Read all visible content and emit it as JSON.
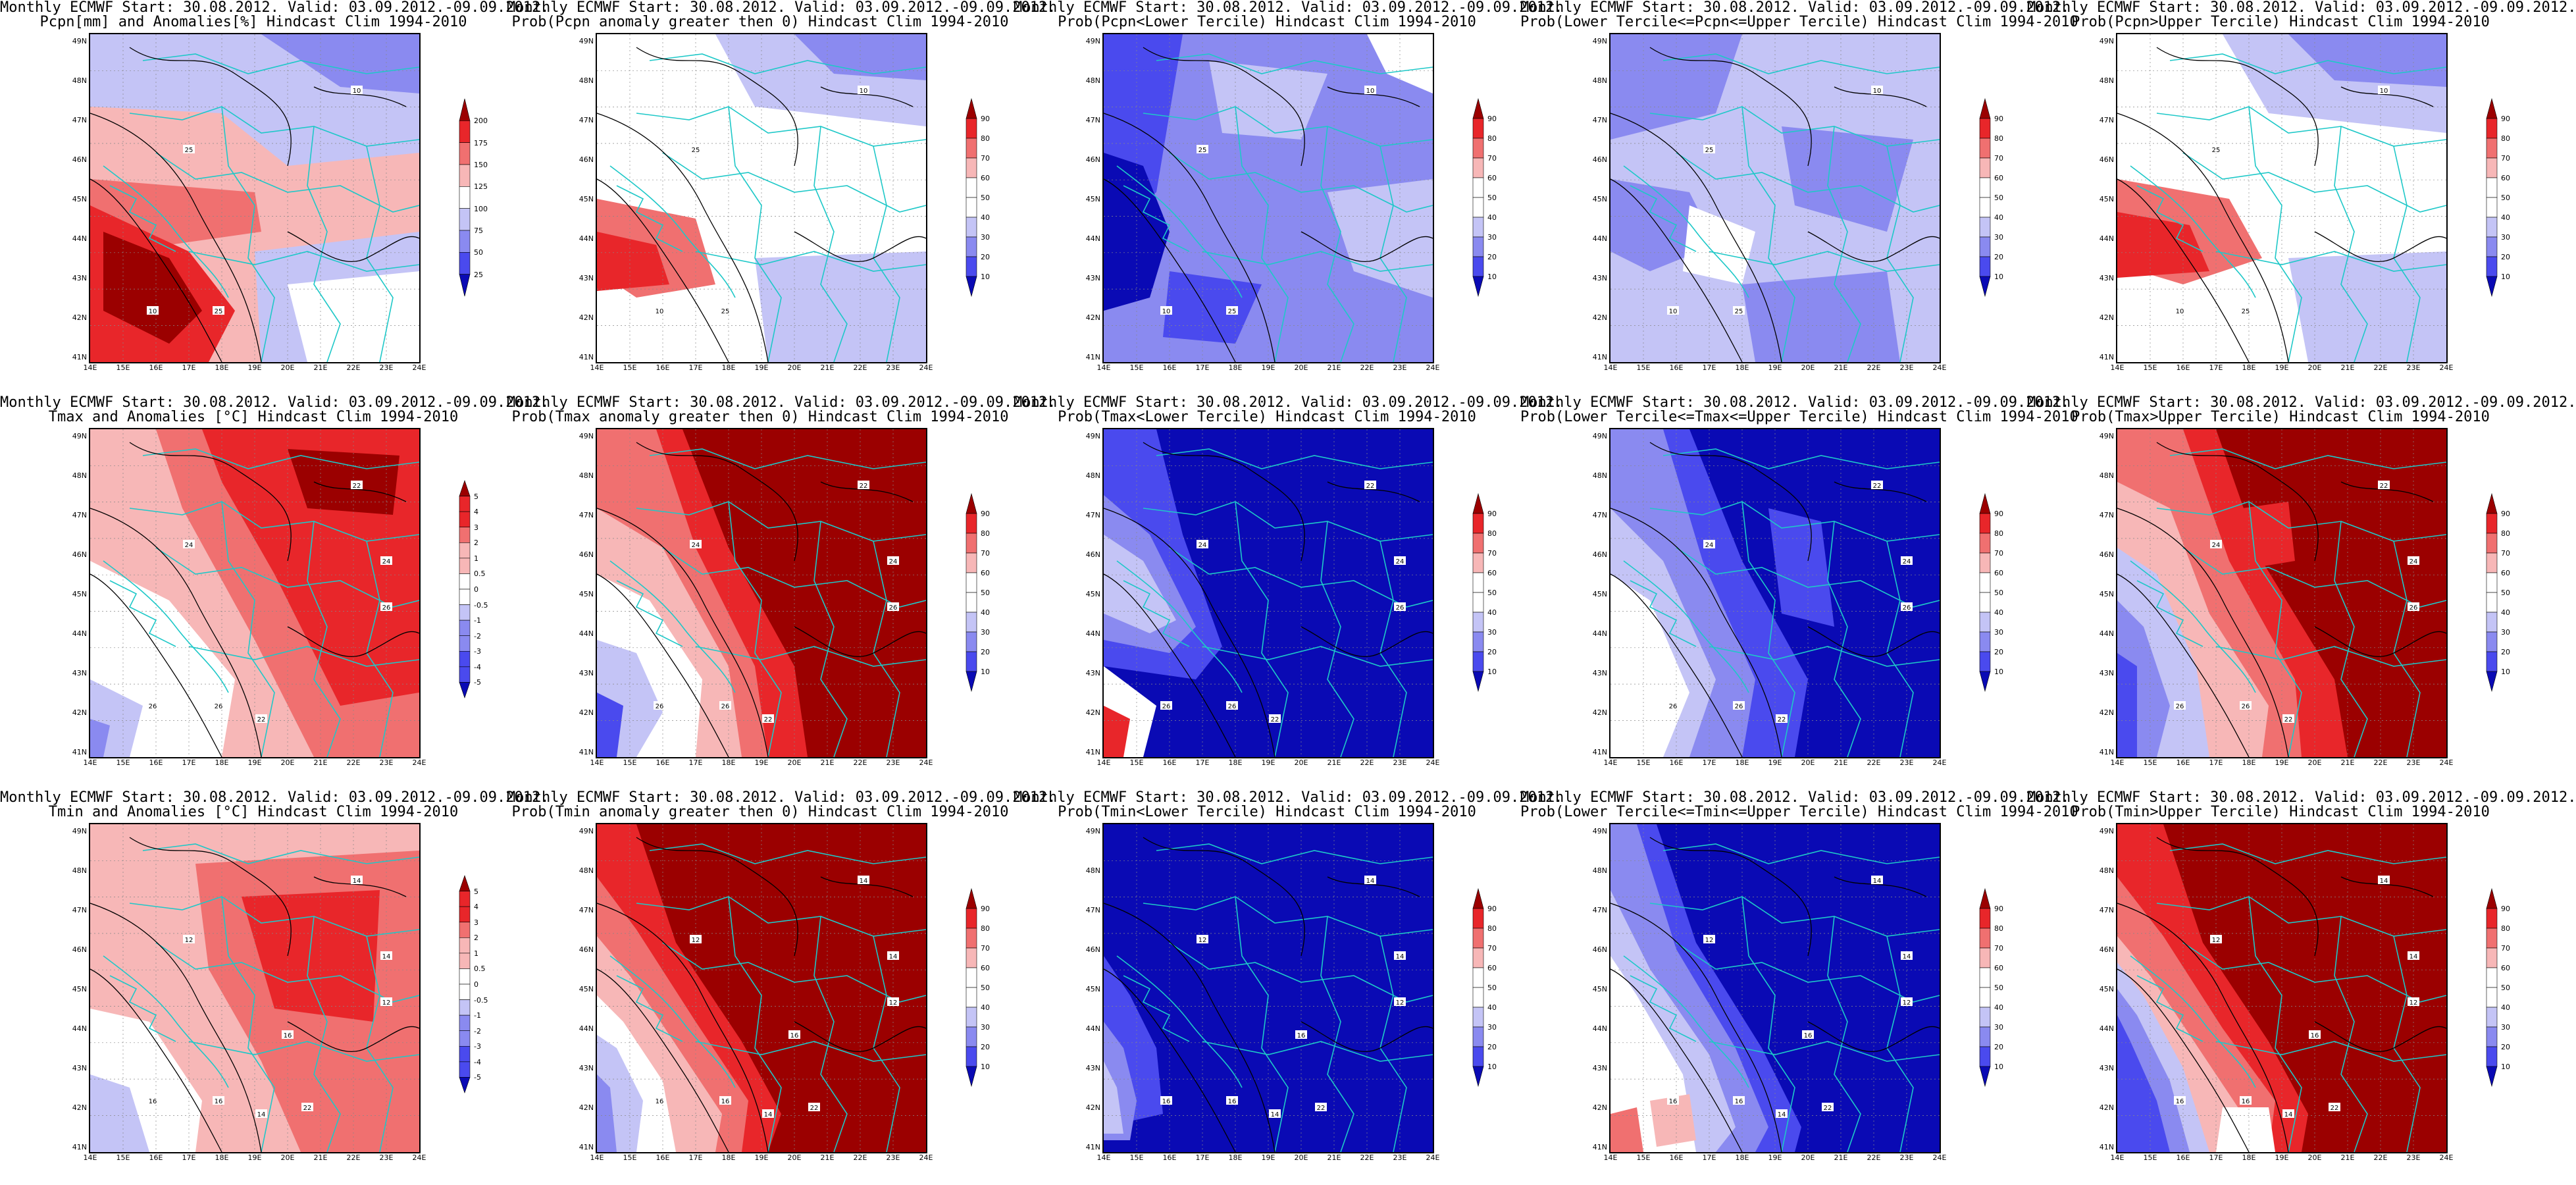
{
  "figure": {
    "panels": [
      {
        "title_line1": "Monthly ECMWF Start: 30.08.2012. Valid: 03.09.2012.-09.09.2012.",
        "title_line2": "Pcpn[mm] and Anomalies[%] Hindcast Clim 1994-2010",
        "scheme": "pcpn_anom",
        "colorbar": [
          "25",
          "50",
          "75",
          "100",
          "125",
          "150",
          "175",
          "200"
        ],
        "contour_labels": [
          "10",
          "25",
          "25",
          "10"
        ]
      },
      {
        "title_line1": "Monthly ECMWF Start: 30.08.2012. Valid: 03.09.2012.-09.09.2012.",
        "title_line2": "Prob(Pcpn anomaly greater then 0) Hindcast Clim 1994-2010",
        "scheme": "pcpn_prob_pos",
        "colorbar": [
          "10",
          "20",
          "30",
          "40",
          "50",
          "60",
          "70",
          "80",
          "90"
        ],
        "contour_labels": [
          "10",
          "25",
          "25",
          "10"
        ]
      },
      {
        "title_line1": "Monthly ECMWF Start: 30.08.2012. Valid: 03.09.2012.-09.09.2012.",
        "title_line2": "Prob(Pcpn<Lower Tercile) Hindcast Clim 1994-2010",
        "scheme": "pcpn_prob_low",
        "colorbar": [
          "10",
          "20",
          "30",
          "40",
          "50",
          "60",
          "70",
          "80",
          "90"
        ],
        "contour_labels": [
          "10",
          "25",
          "25",
          "10"
        ]
      },
      {
        "title_line1": "Monthly ECMWF Start: 30.08.2012. Valid: 03.09.2012.-09.09.2012.",
        "title_line2": "Prob(Lower Tercile<=Pcpn<=Upper Tercile) Hindcast Clim 1994-2010",
        "scheme": "pcpn_prob_mid",
        "colorbar": [
          "10",
          "20",
          "30",
          "40",
          "50",
          "60",
          "70",
          "80",
          "90"
        ],
        "contour_labels": [
          "10",
          "25",
          "25",
          "10"
        ]
      },
      {
        "title_line1": "Monthly ECMWF Start: 30.08.2012. Valid: 03.09.2012.-09.09.2012.",
        "title_line2": "Prob(Pcpn>Upper Tercile) Hindcast Clim 1994-2010",
        "scheme": "pcpn_prob_up",
        "colorbar": [
          "10",
          "20",
          "30",
          "40",
          "50",
          "60",
          "70",
          "80",
          "90"
        ],
        "contour_labels": [
          "10",
          "25",
          "25",
          "10"
        ]
      },
      {
        "title_line1": "Monthly ECMWF Start: 30.08.2012. Valid: 03.09.2012.-09.09.2012.",
        "title_line2": "Tmax and Anomalies [°C] Hindcast Clim 1994-2010",
        "scheme": "tmax_anom",
        "colorbar": [
          "-5",
          "-4",
          "-3",
          "-2",
          "-1",
          "-0.5",
          "0",
          "0.5",
          "1",
          "2",
          "3",
          "4",
          "5"
        ],
        "contour_labels": [
          "22",
          "24",
          "26",
          "26",
          "22",
          "24",
          "26"
        ]
      },
      {
        "title_line1": "Monthly ECMWF Start: 30.08.2012. Valid: 03.09.2012.-09.09.2012.",
        "title_line2": "Prob(Tmax anomaly greater then 0) Hindcast Clim 1994-2010",
        "scheme": "tmax_prob_pos",
        "colorbar": [
          "10",
          "20",
          "30",
          "40",
          "50",
          "60",
          "70",
          "80",
          "90"
        ],
        "contour_labels": [
          "22",
          "24",
          "26",
          "26",
          "22",
          "24",
          "26"
        ]
      },
      {
        "title_line1": "Monthly ECMWF Start: 30.08.2012. Valid: 03.09.2012.-09.09.2012.",
        "title_line2": "Prob(Tmax<Lower Tercile) Hindcast Clim 1994-2010",
        "scheme": "tmax_prob_low",
        "colorbar": [
          "10",
          "20",
          "30",
          "40",
          "50",
          "60",
          "70",
          "80",
          "90"
        ],
        "contour_labels": [
          "22",
          "24",
          "26",
          "26",
          "22",
          "24",
          "26"
        ]
      },
      {
        "title_line1": "Monthly ECMWF Start: 30.08.2012. Valid: 03.09.2012.-09.09.2012.",
        "title_line2": "Prob(Lower Tercile<=Tmax<=Upper Tercile) Hindcast Clim 1994-2010",
        "scheme": "tmax_prob_mid",
        "colorbar": [
          "10",
          "20",
          "30",
          "40",
          "50",
          "60",
          "70",
          "80",
          "90"
        ],
        "contour_labels": [
          "22",
          "24",
          "26",
          "26",
          "22",
          "24",
          "26"
        ]
      },
      {
        "title_line1": "Monthly ECMWF Start: 30.08.2012. Valid: 03.09.2012.-09.09.2012.",
        "title_line2": "Prob(Tmax>Upper Tercile) Hindcast Clim 1994-2010",
        "scheme": "tmax_prob_up",
        "colorbar": [
          "10",
          "20",
          "30",
          "40",
          "50",
          "60",
          "70",
          "80",
          "90"
        ],
        "contour_labels": [
          "22",
          "24",
          "26",
          "26",
          "22",
          "24",
          "26"
        ]
      },
      {
        "title_line1": "Monthly ECMWF Start: 30.08.2012. Valid: 03.09.2012.-09.09.2012.",
        "title_line2": "Tmin and Anomalies [°C] Hindcast Clim 1994-2010",
        "scheme": "tmin_anom",
        "colorbar": [
          "-5",
          "-4",
          "-3",
          "-2",
          "-1",
          "-0.5",
          "0",
          "0.5",
          "1",
          "2",
          "3",
          "4",
          "5"
        ],
        "contour_labels": [
          "14",
          "12",
          "16",
          "16",
          "14",
          "14",
          "12",
          "16",
          "22"
        ]
      },
      {
        "title_line1": "Monthly ECMWF Start: 30.08.2012. Valid: 03.09.2012.-09.09.2012.",
        "title_line2": "Prob(Tmin anomaly greater then 0) Hindcast Clim 1994-2010",
        "scheme": "tmin_prob_pos",
        "colorbar": [
          "10",
          "20",
          "30",
          "40",
          "50",
          "60",
          "70",
          "80",
          "90"
        ],
        "contour_labels": [
          "14",
          "12",
          "16",
          "16",
          "14",
          "14",
          "12",
          "16",
          "22"
        ]
      },
      {
        "title_line1": "Monthly ECMWF Start: 30.08.2012. Valid: 03.09.2012.-09.09.2012.",
        "title_line2": "Prob(Tmin<Lower Tercile) Hindcast Clim 1994-2010",
        "scheme": "tmin_prob_low",
        "colorbar": [
          "10",
          "20",
          "30",
          "40",
          "50",
          "60",
          "70",
          "80",
          "90"
        ],
        "contour_labels": [
          "14",
          "12",
          "16",
          "16",
          "14",
          "14",
          "12",
          "16",
          "22"
        ]
      },
      {
        "title_line1": "Monthly ECMWF Start: 30.08.2012. Valid: 03.09.2012.-09.09.2012.",
        "title_line2": "Prob(Lower Tercile<=Tmin<=Upper Tercile) Hindcast Clim 1994-2010",
        "scheme": "tmin_prob_mid",
        "colorbar": [
          "10",
          "20",
          "30",
          "40",
          "50",
          "60",
          "70",
          "80",
          "90"
        ],
        "contour_labels": [
          "14",
          "12",
          "16",
          "16",
          "14",
          "14",
          "12",
          "16",
          "22"
        ]
      },
      {
        "title_line1": "Monthly ECMWF Start: 30.08.2012. Valid: 03.09.2012.-09.09.2012.",
        "title_line2": "Prob(Tmin>Upper Tercile) Hindcast Clim 1994-2010",
        "scheme": "tmin_prob_up",
        "colorbar": [
          "10",
          "20",
          "30",
          "40",
          "50",
          "60",
          "70",
          "80",
          "90"
        ],
        "contour_labels": [
          "14",
          "12",
          "16",
          "16",
          "14",
          "14",
          "12",
          "16",
          "22"
        ]
      }
    ],
    "x_ticks": [
      "14E",
      "15E",
      "16E",
      "17E",
      "18E",
      "19E",
      "20E",
      "21E",
      "22E",
      "23E",
      "24E"
    ],
    "y_ticks": [
      "49N",
      "48N",
      "47N",
      "46N",
      "45N",
      "44N",
      "43N",
      "42N",
      "41N"
    ],
    "colors": {
      "dark_red": "#9b0000",
      "red": "#e8262a",
      "mid_red": "#f07070",
      "light_red": "#f7b7b7",
      "white": "#ffffff",
      "light_blue": "#c4c4f6",
      "mid_blue": "#8a8af0",
      "blue": "#4a4aee",
      "dark_blue": "#0a0ab4",
      "contour": "#000000",
      "border": "#1ec8c8"
    }
  }
}
